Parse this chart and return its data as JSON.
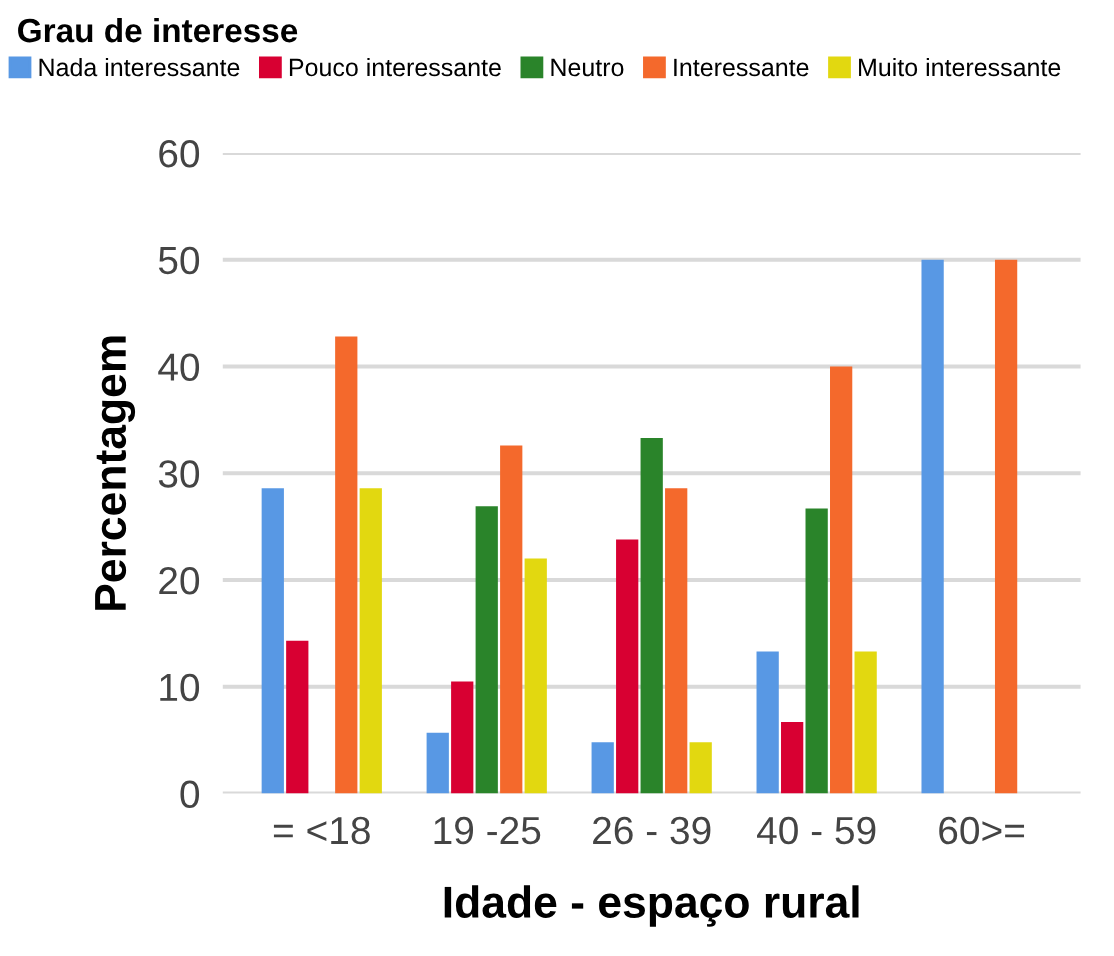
{
  "chart_data": {
    "type": "bar",
    "legend_title": "Grau de interesse",
    "xlabel": "Idade - espaço rural",
    "ylabel": "Percentagem",
    "categories": [
      "= <18",
      "19 -25",
      "26 - 39",
      "40 - 59",
      "60>="
    ],
    "series": [
      {
        "name": "Nada interessante",
        "color": "#5898e4",
        "values": [
          28.6,
          5.7,
          4.8,
          13.3,
          50
        ]
      },
      {
        "name": "Pouco interessante",
        "color": "#d80032",
        "values": [
          14.3,
          10.5,
          23.8,
          6.7,
          0
        ]
      },
      {
        "name": "Neutro",
        "color": "#2a842a",
        "values": [
          0,
          26.9,
          33.3,
          26.7,
          0
        ]
      },
      {
        "name": "Interessante",
        "color": "#f4692c",
        "values": [
          42.8,
          32.6,
          28.6,
          40,
          50
        ]
      },
      {
        "name": "Muito interessante",
        "color": "#e2d810",
        "values": [
          28.6,
          22.0,
          4.8,
          13.3,
          0
        ]
      }
    ],
    "ylim": [
      0,
      60
    ],
    "yticks": [
      0,
      10,
      20,
      30,
      40,
      50,
      60
    ],
    "grid": "y",
    "legend": "top"
  }
}
